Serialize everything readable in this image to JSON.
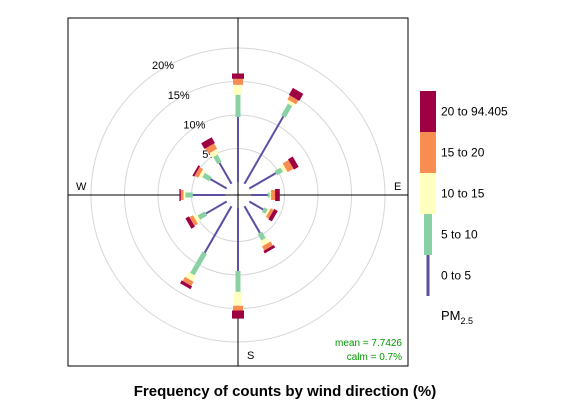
{
  "chart_data": {
    "type": "wind rose",
    "title": "Frequency of counts by wind direction (%)",
    "rings": [
      {
        "percent": 5,
        "label": "5%"
      },
      {
        "percent": 10,
        "label": "10%"
      },
      {
        "percent": 15,
        "label": "15%"
      },
      {
        "percent": 20,
        "label": "20%"
      }
    ],
    "compass": {
      "W": "W",
      "E": "E",
      "S": "S"
    },
    "legend": {
      "title": "PM",
      "title_sub": "2.5",
      "bins": [
        {
          "label": "0 to 5",
          "color": "#5E4FA2"
        },
        {
          "label": "5 to 10",
          "color": "#88D1A4"
        },
        {
          "label": "10 to 15",
          "color": "#FFFFBF"
        },
        {
          "label": "15 to 20",
          "color": "#F88D52"
        },
        {
          "label": "20 to 94.405",
          "color": "#9E0142"
        }
      ]
    },
    "stats": {
      "mean": "mean = 7.7426",
      "calm": "calm = 0.7%"
    },
    "stat_color": "#009900",
    "directions": [
      0,
      30,
      60,
      90,
      120,
      150,
      180,
      210,
      240,
      270,
      300,
      330
    ],
    "cumulative_percent": [
      [
        9.7,
        13.0,
        14.5,
        15.4,
        16.2
      ],
      [
        11.6,
        13.6,
        14.1,
        14.8,
        16.0
      ],
      [
        4.6,
        5.6,
        6.2,
        7.2,
        8.0
      ],
      [
        2.5,
        2.8,
        3.0,
        3.6,
        4.3
      ],
      [
        2.4,
        3.0,
        3.3,
        3.8,
        4.4
      ],
      [
        4.6,
        5.7,
        6.5,
        7.2,
        7.6
      ],
      [
        9.4,
        12.5,
        14.6,
        15.3,
        16.5
      ],
      [
        8.0,
        11.7,
        12.6,
        13.3,
        13.8
      ],
      [
        3.6,
        4.8,
        5.4,
        6.0,
        6.6
      ],
      [
        4.8,
        5.9,
        6.2,
        6.6,
        6.8
      ],
      [
        2.8,
        4.0,
        4.5,
        5.1,
        5.4
      ],
      [
        3.6,
        4.8,
        5.6,
        6.5,
        7.5
      ]
    ]
  }
}
